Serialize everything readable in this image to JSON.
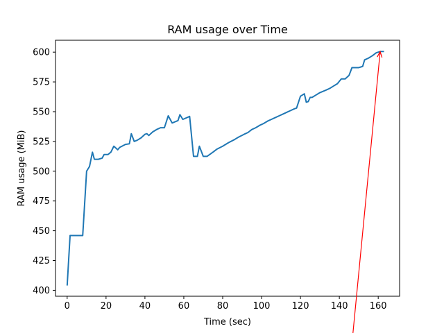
{
  "chart_data": {
    "type": "line",
    "title": "RAM usage over Time",
    "xlabel": "Time (sec)",
    "ylabel": "RAM usage (MiB)",
    "xlim": [
      -6,
      171
    ],
    "ylim": [
      395,
      610
    ],
    "xticks": [
      0,
      20,
      40,
      60,
      80,
      100,
      120,
      140,
      160
    ],
    "yticks": [
      400,
      425,
      450,
      475,
      500,
      525,
      550,
      575,
      600
    ],
    "grid": false,
    "legend": "none",
    "series": [
      {
        "color": "#1f77b4",
        "points": [
          [
            0,
            404
          ],
          [
            1.5,
            446
          ],
          [
            3,
            446
          ],
          [
            5,
            446
          ],
          [
            8,
            446
          ],
          [
            10,
            500
          ],
          [
            11.5,
            504
          ],
          [
            13,
            516
          ],
          [
            14,
            510
          ],
          [
            16,
            510
          ],
          [
            18,
            511
          ],
          [
            19,
            514
          ],
          [
            21,
            514
          ],
          [
            22.5,
            516
          ],
          [
            24,
            521
          ],
          [
            26,
            518
          ],
          [
            27,
            520
          ],
          [
            30,
            522.5
          ],
          [
            32,
            523
          ],
          [
            33,
            531.5
          ],
          [
            34.5,
            525
          ],
          [
            36,
            526
          ],
          [
            38,
            528
          ],
          [
            40,
            531
          ],
          [
            41,
            531.5
          ],
          [
            42,
            530
          ],
          [
            44,
            533
          ],
          [
            46,
            535
          ],
          [
            48,
            536.5
          ],
          [
            50,
            536.5
          ],
          [
            52,
            546.5
          ],
          [
            54,
            540.5
          ],
          [
            57,
            542.5
          ],
          [
            58,
            547.5
          ],
          [
            59.5,
            543.5
          ],
          [
            63,
            546
          ],
          [
            65,
            512.5
          ],
          [
            67,
            512.5
          ],
          [
            68,
            521
          ],
          [
            70,
            512.5
          ],
          [
            72,
            512.5
          ],
          [
            75,
            516
          ],
          [
            77,
            518.5
          ],
          [
            80,
            521
          ],
          [
            83,
            524
          ],
          [
            86,
            526.5
          ],
          [
            88,
            528.5
          ],
          [
            91,
            531
          ],
          [
            93,
            532.5
          ],
          [
            95,
            535
          ],
          [
            97,
            536.5
          ],
          [
            99,
            538.5
          ],
          [
            101,
            540
          ],
          [
            103,
            542
          ],
          [
            105,
            543.5
          ],
          [
            107,
            545
          ],
          [
            109,
            546.5
          ],
          [
            111,
            548
          ],
          [
            113,
            549.5
          ],
          [
            115,
            551
          ],
          [
            117,
            552.5
          ],
          [
            118,
            553
          ],
          [
            120,
            563
          ],
          [
            122,
            565
          ],
          [
            123,
            558
          ],
          [
            124,
            558.5
          ],
          [
            125,
            562
          ],
          [
            126,
            562
          ],
          [
            128,
            564
          ],
          [
            130,
            566
          ],
          [
            133,
            568
          ],
          [
            135,
            569.5
          ],
          [
            137,
            571.5
          ],
          [
            139,
            573.5
          ],
          [
            141,
            577.5
          ],
          [
            143,
            577.5
          ],
          [
            145,
            580.5
          ],
          [
            146.5,
            587
          ],
          [
            150,
            587
          ],
          [
            152,
            588
          ],
          [
            153,
            593.5
          ],
          [
            155,
            595
          ],
          [
            157,
            597
          ],
          [
            159,
            599.5
          ],
          [
            161,
            600.5
          ],
          [
            163,
            600.5
          ]
        ]
      }
    ],
    "annotation": {
      "type": "arrow",
      "color": "#ff0000",
      "xy": [
        161,
        600.5
      ],
      "xytext": [
        147,
        364
      ]
    }
  }
}
